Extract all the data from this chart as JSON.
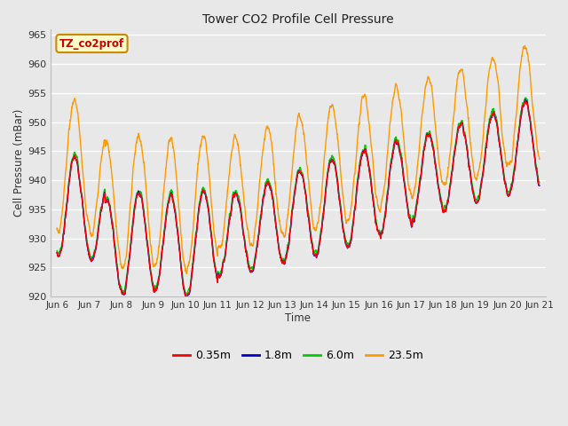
{
  "title": "Tower CO2 Profile Cell Pressure",
  "xlabel": "Time",
  "ylabel": "Cell Pressure (mBar)",
  "ylim": [
    920,
    966
  ],
  "yticks": [
    920,
    925,
    930,
    935,
    940,
    945,
    950,
    955,
    960,
    965
  ],
  "annotation_text": "TZ_co2prof",
  "annotation_box_facecolor": "#ffffcc",
  "annotation_box_edgecolor": "#cc8800",
  "annotation_text_color": "#cc0000",
  "bg_color": "#e8e8e8",
  "grid_color": "#ffffff",
  "series_colors": [
    "#ff0000",
    "#0000cc",
    "#00cc00",
    "#ff9900"
  ],
  "series_labels": [
    "0.35m",
    "1.8m",
    "6.0m",
    "23.5m"
  ],
  "tick_labels": [
    "Jun 6",
    "Jun 7",
    "Jun 8",
    "Jun 9",
    "Jun 10",
    "Jun 11",
    "Jun 12",
    "Jun 13",
    "Jun 14",
    "Jun 15",
    "Jun 16",
    "Jun 17",
    "Jun 18",
    "Jun 19",
    "Jun 20",
    "Jun 21"
  ],
  "figsize": [
    6.4,
    4.8
  ],
  "dpi": 100
}
